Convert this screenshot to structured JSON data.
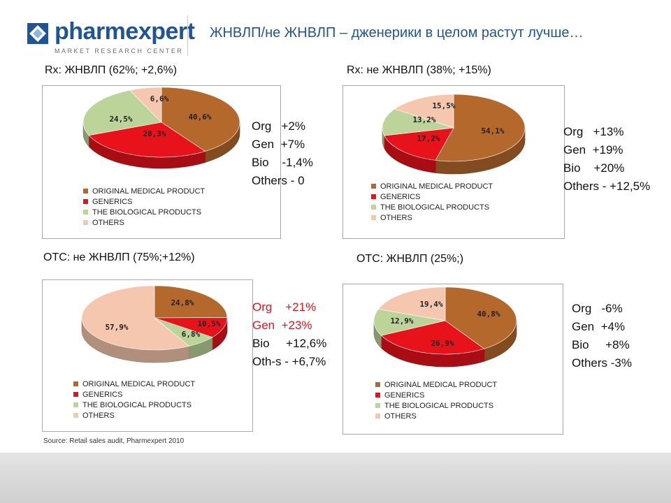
{
  "logo": {
    "word": "pharmexpert",
    "subtitle": "MARKET RESEARCH CENTER"
  },
  "slide_title": "ЖНВЛП/не ЖНВЛП – дженерики в целом растут лучше…",
  "colors": {
    "original": "#b5682c",
    "generics": "#e8121b",
    "biological": "#bcd49a",
    "others": "#f5c7ae",
    "title_blue": "#1f5594"
  },
  "legend_labels": [
    "ORIGINAL MEDICAL PRODUCT",
    "GENERICS",
    "THE BIOLOGICAL PRODUCTS",
    "OTHERS"
  ],
  "chart_data": [
    {
      "type": "pie",
      "title": "Rx: ЖНВЛП (62%; +2,6%)",
      "categories": [
        "ORIGINAL MEDICAL PRODUCT",
        "GENERICS",
        "THE BIOLOGICAL PRODUCTS",
        "OTHERS"
      ],
      "values": [
        40.6,
        28.3,
        24.5,
        6.6
      ],
      "data_labels": [
        "40,6%",
        "28,3%",
        "24,5%",
        "6,6%"
      ],
      "legend": "bottom"
    },
    {
      "type": "pie",
      "title": "Rx: не ЖНВЛП (38%; +15%)",
      "categories": [
        "ORIGINAL MEDICAL PRODUCT",
        "GENERICS",
        "THE BIOLOGICAL PRODUCTS",
        "OTHERS"
      ],
      "values": [
        54.1,
        17.2,
        13.2,
        15.5
      ],
      "data_labels": [
        "54,1%",
        "17,2%",
        "13,2%",
        "15,5%"
      ],
      "legend": "bottom"
    },
    {
      "type": "pie",
      "title": "OTC: не ЖНВЛП (75%;+12%)",
      "categories": [
        "ORIGINAL MEDICAL PRODUCT",
        "GENERICS",
        "THE BIOLOGICAL PRODUCTS",
        "OTHERS"
      ],
      "values": [
        24.8,
        10.5,
        6.8,
        57.9
      ],
      "data_labels": [
        "24,8%",
        "10,5%",
        "6,8%",
        "57,9%"
      ],
      "legend": "bottom"
    },
    {
      "type": "pie",
      "title": "OTC: ЖНВЛП (25%;)",
      "categories": [
        "ORIGINAL MEDICAL PRODUCT",
        "GENERICS",
        "THE BIOLOGICAL PRODUCTS",
        "OTHERS"
      ],
      "values": [
        40.8,
        26.9,
        12.9,
        19.4
      ],
      "data_labels": [
        "40,8%",
        "26,9%",
        "12,9%",
        "19,4%"
      ],
      "legend": "bottom"
    }
  ],
  "notes": [
    {
      "color": "#111111",
      "lines": [
        "Org   +2%",
        "Gen  +7%",
        "Bio    -1,4%",
        "Others - 0"
      ]
    },
    {
      "color": "#111111",
      "lines": [
        "Org   +13%",
        "Gen  +19%",
        "Bio    +20%",
        "Others - +12,5%"
      ]
    },
    {
      "color": "#e8121b",
      "color_after": 2,
      "lines": [
        "Org    +21%",
        "Gen  +23%",
        "Bio     +12,6%",
        "Oth-s - +6,7%"
      ]
    },
    {
      "color": "#111111",
      "lines": [
        "Org   -6%",
        "Gen  +4%",
        "Bio     +8%",
        "Others -3%"
      ]
    }
  ],
  "source": "Source: Retail sales audit, Pharmexpert 2010"
}
